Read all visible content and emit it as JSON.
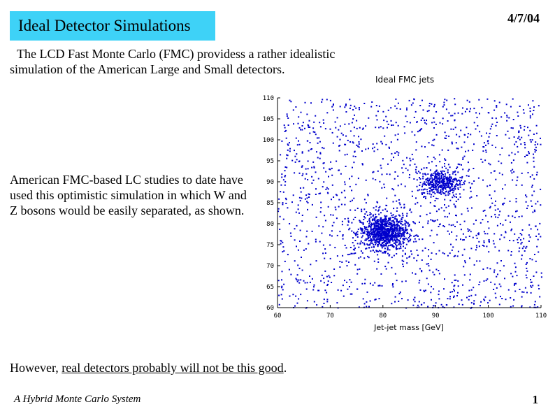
{
  "slide": {
    "title": "Ideal Detector Simulations",
    "date": "4/7/04",
    "intro_line1": "The LCD Fast Monte Carlo (FMC) providess a rather idealistic",
    "intro_line2": "simulation of the American Large and Small detectors.",
    "body": "American FMC-based LC studies to date have used this optimistic simulation in which W and Z bosons would be easily separated, as shown.",
    "closing_prefix": "However, ",
    "closing_underlined": "real detectors probably will not be this good",
    "closing_suffix": ".",
    "footer_left": "A Hybrid Monte Carlo System",
    "page_number": "1"
  },
  "colors": {
    "title_bg": "#3ed2f7",
    "points": "#0000cc"
  },
  "chart_data": {
    "type": "scatter",
    "title": "Ideal FMC jets",
    "xlabel": "Jet-jet mass [GeV]",
    "ylabel": "",
    "xlim": [
      60,
      110
    ],
    "ylim": [
      60,
      110
    ],
    "xticks": [
      "60",
      "70",
      "80",
      "90",
      "100",
      "110"
    ],
    "yticks": [
      "60",
      "65",
      "70",
      "75",
      "80",
      "85",
      "90",
      "95",
      "100",
      "105",
      "110"
    ],
    "grid": false,
    "legend": "none",
    "clusters": [
      {
        "name": "W",
        "center": [
          80,
          78
        ],
        "spread": [
          2.2,
          2.0
        ],
        "count": 900
      },
      {
        "name": "Z",
        "center": [
          91,
          90
        ],
        "spread": [
          2.0,
          1.6
        ],
        "count": 380
      }
    ],
    "background_points": 1500
  }
}
